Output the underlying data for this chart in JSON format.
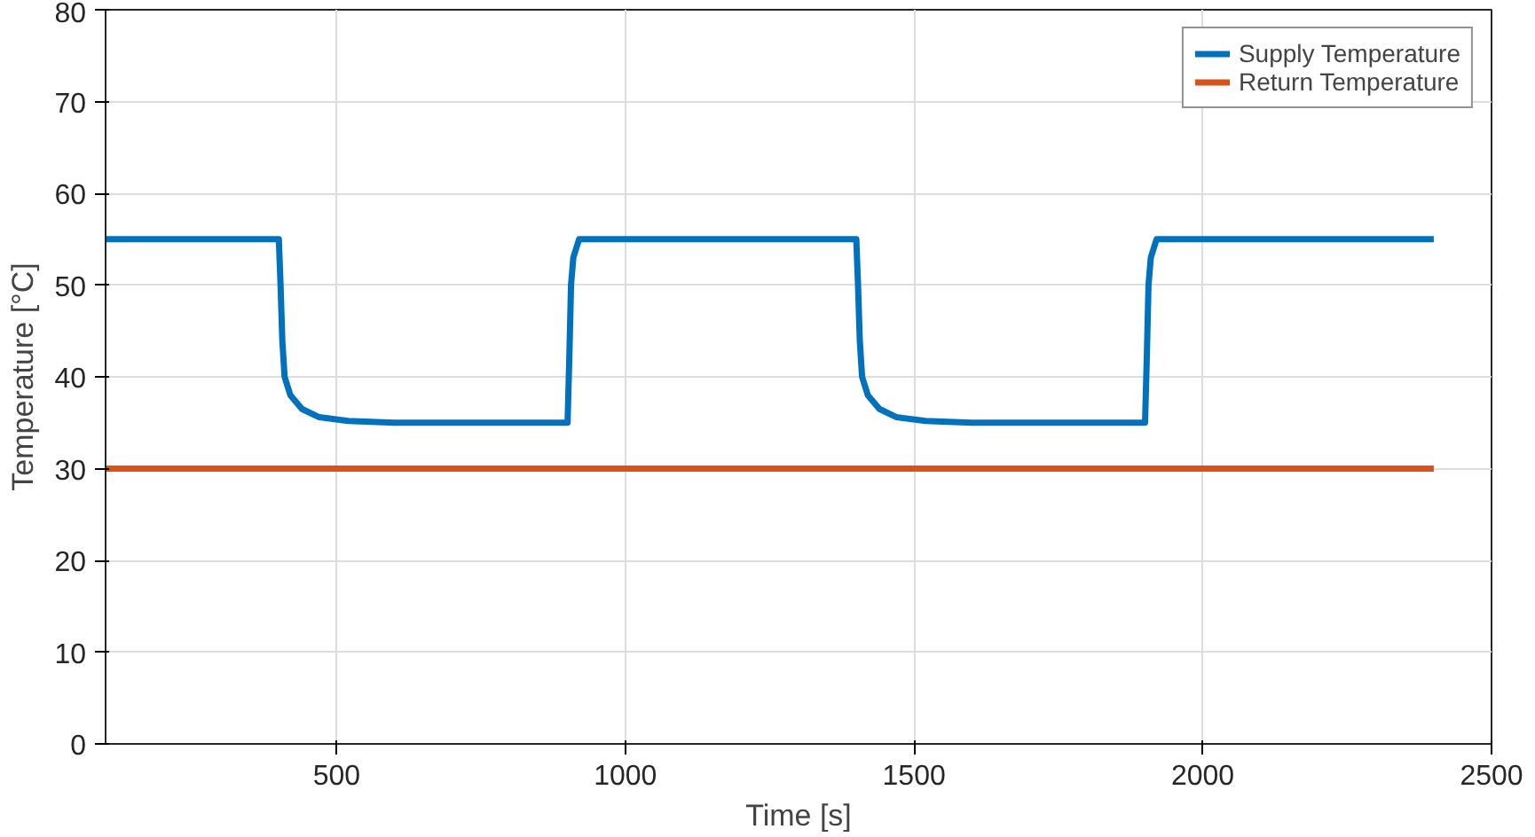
{
  "chart_data": {
    "type": "line",
    "xlabel": "Time [s]",
    "ylabel": "Temperature [°C]",
    "xlim": [
      100,
      2500
    ],
    "xticks": [
      500,
      1000,
      1500,
      2000,
      2500
    ],
    "ylim": [
      0,
      80
    ],
    "yticks": [
      0,
      10,
      20,
      30,
      40,
      50,
      60,
      70,
      80
    ],
    "grid": true,
    "legend": "top right",
    "series": [
      {
        "name": "Supply Temperature",
        "color": "#0072bd",
        "x": [
          100,
          400,
          403,
          406,
          410,
          420,
          440,
          470,
          520,
          600,
          900,
          903,
          906,
          910,
          920,
          1400,
          1403,
          1406,
          1410,
          1420,
          1440,
          1470,
          1520,
          1600,
          1900,
          1903,
          1906,
          1910,
          1920,
          2400
        ],
        "values": [
          55,
          55,
          50,
          44,
          40,
          38,
          36.5,
          35.6,
          35.2,
          35,
          35,
          42,
          50,
          53,
          55,
          55,
          50,
          44,
          40,
          38,
          36.5,
          35.6,
          35.2,
          35,
          35,
          42,
          50,
          53,
          55,
          55
        ]
      },
      {
        "name": "Return Temperature",
        "color": "#d95319",
        "x": [
          100,
          2400
        ],
        "values": [
          30,
          30
        ]
      }
    ]
  }
}
